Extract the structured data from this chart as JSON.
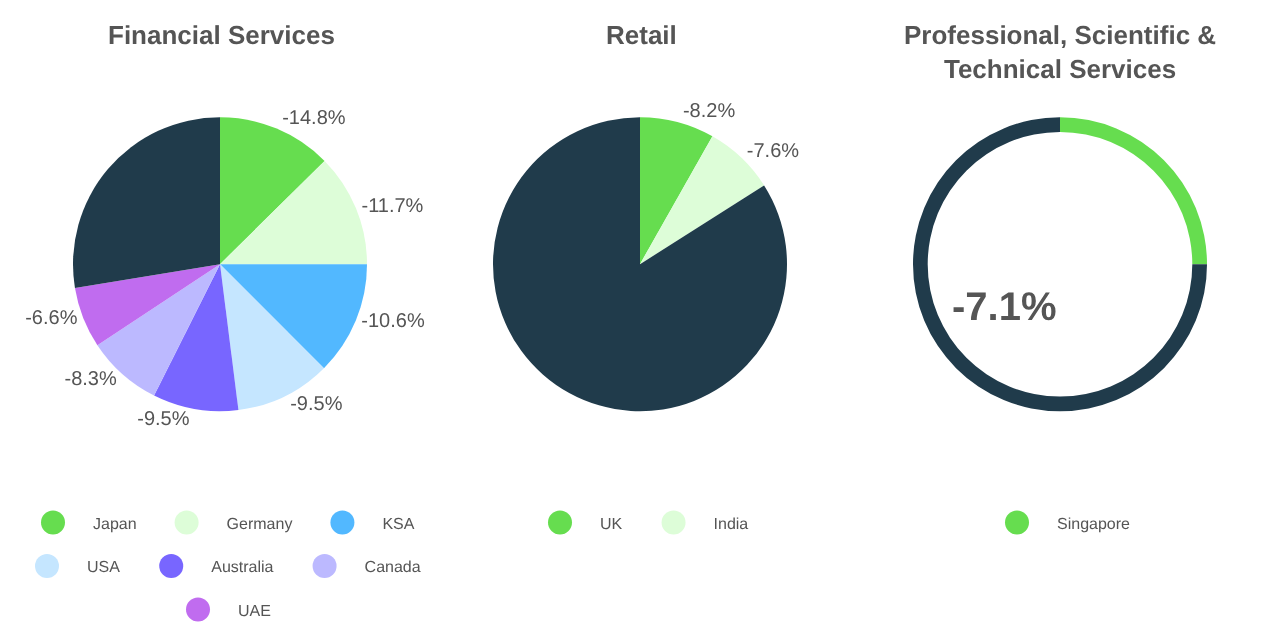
{
  "chart_data": [
    {
      "type": "pie",
      "title": "Financial Services",
      "categories": [
        "Japan",
        "Germany",
        "KSA",
        "USA",
        "Australia",
        "Canada",
        "UAE",
        null
      ],
      "values": [
        12.6,
        12.4,
        12.5,
        10.5,
        9.4,
        8.3,
        6.7,
        27.6
      ],
      "colors": [
        "#66dd4f",
        "#ddfdd8",
        "#52b8ff",
        "#c5e6ff",
        "#7866ff",
        "#bcb9ff",
        "#c06cef",
        "#203b4b"
      ],
      "annotations": [
        "-14.8%",
        "-11.7%",
        "-10.6%",
        "-9.5%",
        "-9.5%",
        "-8.3%",
        "-6.6%"
      ],
      "legend": "bottom"
    },
    {
      "type": "pie",
      "title": "Retail",
      "categories": [
        "UK",
        "India",
        null
      ],
      "values": [
        8.2,
        7.8,
        84.0
      ],
      "colors": [
        "#66dd4f",
        "#ddfdd8",
        "#203b4b"
      ],
      "annotations": [
        "-8.2%",
        "-7.6%"
      ],
      "legend": "bottom"
    },
    {
      "type": "donut",
      "title": "Professional, Scientific & Technical Services",
      "categories": [
        "Singapore",
        null
      ],
      "values": [
        25,
        75
      ],
      "colors": [
        "#66dd4f",
        "#203b4b"
      ],
      "annotations": [
        "-7.1%"
      ],
      "legend": "bottom"
    }
  ]
}
